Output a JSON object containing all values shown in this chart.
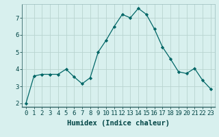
{
  "x": [
    0,
    1,
    2,
    3,
    4,
    5,
    6,
    7,
    8,
    9,
    10,
    11,
    12,
    13,
    14,
    15,
    16,
    17,
    18,
    19,
    20,
    21,
    22,
    23
  ],
  "y": [
    2.0,
    3.6,
    3.7,
    3.7,
    3.7,
    4.0,
    3.55,
    3.15,
    3.5,
    5.0,
    5.7,
    6.5,
    7.2,
    7.0,
    7.55,
    7.2,
    6.35,
    5.3,
    4.6,
    3.85,
    3.75,
    4.05,
    3.35,
    2.85
  ],
  "line_color": "#006666",
  "marker": "D",
  "marker_size": 2.2,
  "bg_color": "#d8f0ee",
  "grid_color": "#b8d4d0",
  "xlabel": "Humidex (Indice chaleur)",
  "xlabel_fontsize": 7.5,
  "tick_fontsize": 6.5,
  "ylim": [
    1.8,
    7.8
  ],
  "xlim": [
    -0.5,
    23.5
  ],
  "yticks": [
    2,
    3,
    4,
    5,
    6,
    7
  ],
  "xticks": [
    0,
    1,
    2,
    3,
    4,
    5,
    6,
    7,
    8,
    9,
    10,
    11,
    12,
    13,
    14,
    15,
    16,
    17,
    18,
    19,
    20,
    21,
    22,
    23
  ]
}
